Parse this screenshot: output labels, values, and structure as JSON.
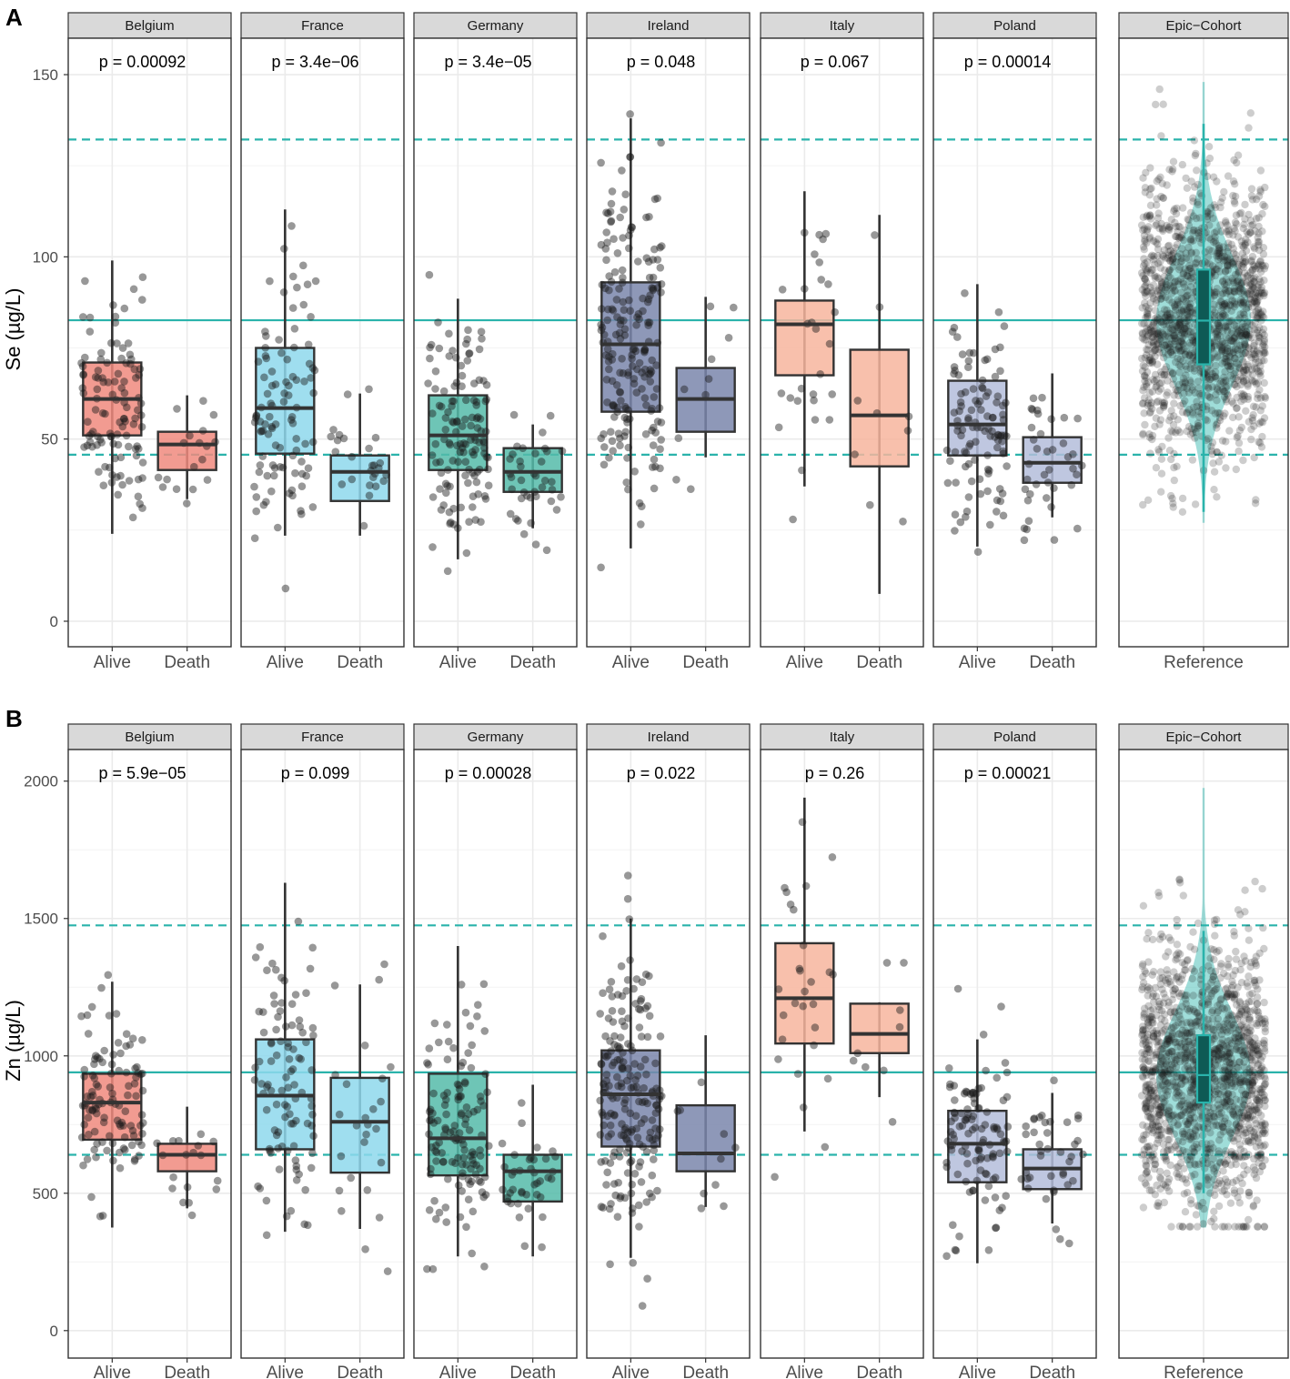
{
  "colors": {
    "Belgium": "#F08A7E",
    "France": "#8ED8EC",
    "Germany": "#55BBA9",
    "Ireland": "#7A86AC",
    "Italy": "#F7B59E",
    "Poland": "#B4BDDB",
    "reference": "#2AB3AB",
    "reference_box": "#0E5A55",
    "points": "#1a1a1a",
    "strip_bg": "#D9D9D9",
    "grid": "#EBEBEB"
  },
  "chart_data": [
    {
      "id": "A",
      "type": "boxplot",
      "panel_label": "A",
      "ylabel": "Se (µg/L)",
      "ylim": [
        -7,
        160
      ],
      "yticks": [
        0,
        50,
        100,
        150
      ],
      "reference_lines": {
        "solid": 82.6,
        "dashed": [
          45.7,
          132.2
        ]
      },
      "facets": [
        {
          "name": "Belgium",
          "p": "p = 0.00092",
          "x_labels": [
            "Alive",
            "Death"
          ],
          "groups": [
            {
              "label": "Alive",
              "q1": 51,
              "median": 61,
              "q3": 71,
              "whisker_lo": 24,
              "whisker_hi": 99,
              "n": 110,
              "spread": 14,
              "seed": 11
            },
            {
              "label": "Death",
              "q1": 41.5,
              "median": 48.5,
              "q3": 52,
              "whisker_lo": 33.5,
              "whisker_hi": 62,
              "n": 18,
              "spread": 8,
              "seed": 12
            }
          ]
        },
        {
          "name": "France",
          "p": "p = 3.4e−06",
          "x_labels": [
            "Alive",
            "Death"
          ],
          "groups": [
            {
              "label": "Alive",
              "q1": 46,
              "median": 58.5,
              "q3": 75,
              "whisker_lo": 23.5,
              "whisker_hi": 113,
              "n": 100,
              "spread": 20,
              "seed": 21
            },
            {
              "label": "Death",
              "q1": 33,
              "median": 41,
              "q3": 45.5,
              "whisker_lo": 23.5,
              "whisker_hi": 62.5,
              "n": 26,
              "spread": 10,
              "seed": 22
            }
          ]
        },
        {
          "name": "Germany",
          "p": "p = 3.4e−05",
          "x_labels": [
            "Alive",
            "Death"
          ],
          "groups": [
            {
              "label": "Alive",
              "q1": 41.5,
              "median": 51,
              "q3": 62,
              "whisker_lo": 17,
              "whisker_hi": 88.5,
              "n": 130,
              "spread": 15,
              "seed": 31
            },
            {
              "label": "Death",
              "q1": 35.5,
              "median": 41,
              "q3": 47.5,
              "whisker_lo": 25.5,
              "whisker_hi": 54,
              "n": 40,
              "spread": 8,
              "seed": 32
            }
          ]
        },
        {
          "name": "Ireland",
          "p": "p = 0.048",
          "x_labels": [
            "Alive",
            "Death"
          ],
          "groups": [
            {
              "label": "Alive",
              "q1": 57.5,
              "median": 76,
              "q3": 93,
              "whisker_lo": 20,
              "whisker_hi": 138,
              "n": 200,
              "spread": 24,
              "seed": 41
            },
            {
              "label": "Death",
              "q1": 52,
              "median": 61,
              "q3": 69.5,
              "whisker_lo": 45,
              "whisker_hi": 89,
              "n": 10,
              "spread": 18,
              "seed": 42
            }
          ]
        },
        {
          "name": "Italy",
          "p": "p = 0.067",
          "x_labels": [
            "Alive",
            "Death"
          ],
          "groups": [
            {
              "label": "Alive",
              "q1": 67.5,
              "median": 81.5,
              "q3": 88,
              "whisker_lo": 37,
              "whisker_hi": 118,
              "n": 28,
              "spread": 18,
              "seed": 51
            },
            {
              "label": "Death",
              "q1": 42.5,
              "median": 56.5,
              "q3": 74.5,
              "whisker_lo": 7.5,
              "whisker_hi": 111.5,
              "n": 9,
              "spread": 30,
              "seed": 52
            }
          ]
        },
        {
          "name": "Poland",
          "p": "p = 0.00014",
          "x_labels": [
            "Alive",
            "Death"
          ],
          "groups": [
            {
              "label": "Alive",
              "q1": 45.5,
              "median": 54,
              "q3": 66,
              "whisker_lo": 20.5,
              "whisker_hi": 92.5,
              "n": 110,
              "spread": 16,
              "seed": 61
            },
            {
              "label": "Death",
              "q1": 38,
              "median": 43.5,
              "q3": 50.5,
              "whisker_lo": 28.5,
              "whisker_hi": 68,
              "n": 40,
              "spread": 10,
              "seed": 62
            }
          ]
        },
        {
          "name": "Epic−Cohort",
          "reference": true,
          "x_labels": [
            "Reference"
          ],
          "groups": [
            {
              "label": "Reference",
              "q1": 70.5,
              "median": 82.5,
              "q3": 96.5,
              "whisker_lo": 30,
              "whisker_hi": 136.5,
              "violin_lo": 27,
              "violin_hi": 148,
              "n": 1500,
              "spread": 18,
              "seed": 71
            }
          ]
        }
      ]
    },
    {
      "id": "B",
      "type": "boxplot",
      "panel_label": "B",
      "ylabel": "Zn (µg/L)",
      "ylim": [
        -100,
        2115
      ],
      "yticks": [
        0,
        500,
        1000,
        1500,
        2000
      ],
      "reference_lines": {
        "solid": 940,
        "dashed": [
          640,
          1475
        ]
      },
      "facets": [
        {
          "name": "Belgium",
          "p": "p = 5.9e−05",
          "x_labels": [
            "Alive",
            "Death"
          ],
          "groups": [
            {
              "label": "Alive",
              "q1": 695,
              "median": 830,
              "q3": 935,
              "whisker_lo": 375,
              "whisker_hi": 1270,
              "n": 110,
              "spread": 170,
              "seed": 111
            },
            {
              "label": "Death",
              "q1": 580,
              "median": 640,
              "q3": 680,
              "whisker_lo": 445,
              "whisker_hi": 815,
              "n": 18,
              "spread": 80,
              "seed": 112
            }
          ]
        },
        {
          "name": "France",
          "p": "p = 0.099",
          "x_labels": [
            "Alive",
            "Death"
          ],
          "groups": [
            {
              "label": "Alive",
              "q1": 660,
              "median": 855,
              "q3": 1060,
              "whisker_lo": 360,
              "whisker_hi": 1630,
              "n": 100,
              "spread": 280,
              "seed": 121
            },
            {
              "label": "Death",
              "q1": 575,
              "median": 760,
              "q3": 920,
              "whisker_lo": 370,
              "whisker_hi": 1260,
              "n": 26,
              "spread": 230,
              "seed": 122
            }
          ]
        },
        {
          "name": "Germany",
          "p": "p = 0.00028",
          "x_labels": [
            "Alive",
            "Death"
          ],
          "groups": [
            {
              "label": "Alive",
              "q1": 565,
              "median": 700,
              "q3": 935,
              "whisker_lo": 270,
              "whisker_hi": 1400,
              "n": 130,
              "spread": 230,
              "seed": 131
            },
            {
              "label": "Death",
              "q1": 470,
              "median": 580,
              "q3": 640,
              "whisker_lo": 270,
              "whisker_hi": 895,
              "n": 40,
              "spread": 110,
              "seed": 132
            }
          ]
        },
        {
          "name": "Ireland",
          "p": "p = 0.022",
          "x_labels": [
            "Alive",
            "Death"
          ],
          "groups": [
            {
              "label": "Alive",
              "q1": 670,
              "median": 860,
              "q3": 1020,
              "whisker_lo": 265,
              "whisker_hi": 1500,
              "n": 200,
              "spread": 250,
              "seed": 141
            },
            {
              "label": "Death",
              "q1": 580,
              "median": 645,
              "q3": 820,
              "whisker_lo": 450,
              "whisker_hi": 1075,
              "n": 10,
              "spread": 180,
              "seed": 142
            }
          ]
        },
        {
          "name": "Italy",
          "p": "p = 0.26",
          "x_labels": [
            "Alive",
            "Death"
          ],
          "groups": [
            {
              "label": "Alive",
              "q1": 1045,
              "median": 1210,
              "q3": 1410,
              "whisker_lo": 725,
              "whisker_hi": 1940,
              "n": 28,
              "spread": 250,
              "seed": 151
            },
            {
              "label": "Death",
              "q1": 1010,
              "median": 1080,
              "q3": 1190,
              "whisker_lo": 850,
              "whisker_hi": 1195,
              "n": 9,
              "spread": 200,
              "seed": 152
            }
          ]
        },
        {
          "name": "Poland",
          "p": "p = 0.00021",
          "x_labels": [
            "Alive",
            "Death"
          ],
          "groups": [
            {
              "label": "Alive",
              "q1": 540,
              "median": 680,
              "q3": 800,
              "whisker_lo": 245,
              "whisker_hi": 1060,
              "n": 110,
              "spread": 180,
              "seed": 161
            },
            {
              "label": "Death",
              "q1": 515,
              "median": 590,
              "q3": 660,
              "whisker_lo": 390,
              "whisker_hi": 865,
              "n": 40,
              "spread": 110,
              "seed": 162
            }
          ]
        },
        {
          "name": "Epic−Cohort",
          "reference": true,
          "x_labels": [
            "Reference"
          ],
          "groups": [
            {
              "label": "Reference",
              "q1": 830,
              "median": 930,
              "q3": 1075,
              "whisker_lo": 500,
              "whisker_hi": 1455,
              "violin_lo": 375,
              "violin_hi": 1975,
              "n": 1500,
              "spread": 230,
              "seed": 171
            }
          ]
        }
      ]
    }
  ]
}
